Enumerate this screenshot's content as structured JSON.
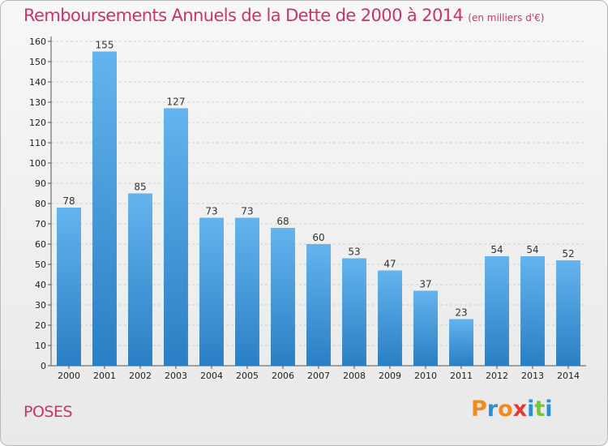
{
  "header": {
    "title": "Remboursements Annuels de la Dette de 2000 à 2014",
    "unit": "(en milliers d'€)"
  },
  "footer": {
    "commune": "POSES",
    "logo": {
      "letters": [
        "P",
        "r",
        "o",
        "x",
        "i",
        "t",
        "i"
      ],
      "colors": [
        "#f28a1e",
        "#2c8fd6",
        "#f28a1e",
        "#e23a3a",
        "#2c8fd6",
        "#7cc242",
        "#2c8fd6"
      ]
    }
  },
  "colors": {
    "bar_light": "#63b4ee",
    "bar_dark": "#2a7fc4",
    "grid": "#cfcfcf",
    "axis": "#555555"
  },
  "chart_data": {
    "type": "bar",
    "title": "Remboursements Annuels de la Dette de 2000 à 2014",
    "xlabel": "",
    "ylabel": "",
    "categories": [
      "2000",
      "2001",
      "2002",
      "2003",
      "2004",
      "2005",
      "2006",
      "2007",
      "2008",
      "2009",
      "2010",
      "2011",
      "2012",
      "2013",
      "2014"
    ],
    "values": [
      78,
      155,
      85,
      127,
      73,
      73,
      68,
      60,
      53,
      47,
      37,
      23,
      54,
      54,
      52
    ],
    "ylim": [
      0,
      160
    ],
    "yticks": [
      0,
      10,
      20,
      30,
      40,
      50,
      60,
      70,
      80,
      90,
      100,
      110,
      120,
      130,
      140,
      150,
      160
    ],
    "grid": true,
    "legend": "none"
  }
}
